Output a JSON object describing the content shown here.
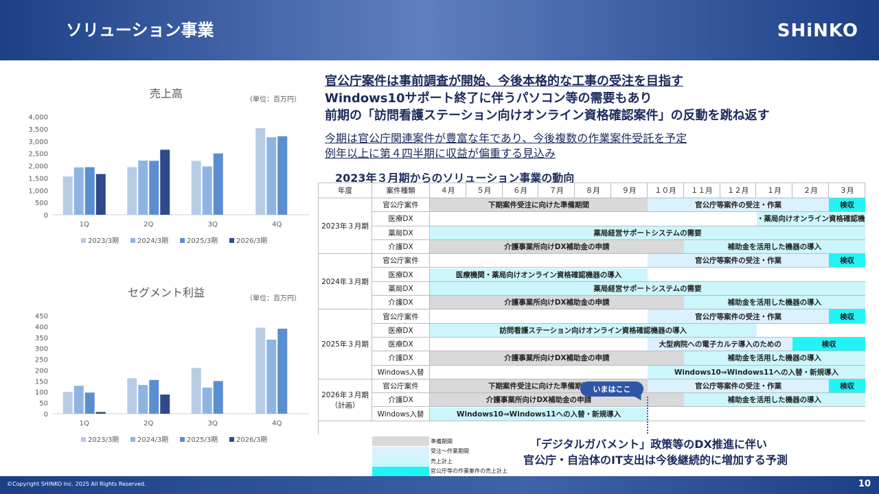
{
  "header": {
    "title": "ソリューション事業",
    "logo": "SHiNKO"
  },
  "footer": {
    "copyright": "©Copyright SHINKO Inc. 2025 All Rights Reserved.",
    "page": "10"
  },
  "headlines": [
    "官公庁案件は事前調査が開始、今後本格的な工事の受注を目指す",
    "Windows10サポート終了に伴うパソコン等の需要もあり",
    "前期の「訪問看護ステーション向けオンライン資格確認案件」の反動を跳ね返す"
  ],
  "subheadlines": [
    "今期は官公庁関連案件が豊富な年であり、今後複数の作業案件受託を予定",
    "例年以上に第４四半期に収益が偏重する見込み"
  ],
  "series_colors": [
    "#b8cce4",
    "#8eb4e3",
    "#5b8ed0",
    "#2e4a8a"
  ],
  "chart_data": [
    {
      "type": "bar",
      "title": "売上高",
      "unit": "（単位：百万円）",
      "categories": [
        "1Q",
        "2Q",
        "3Q",
        "4Q"
      ],
      "ylim": [
        0,
        4000
      ],
      "yticks": [
        "0",
        "500",
        "1,000",
        "1,500",
        "2,000",
        "2,500",
        "3,000",
        "3,500",
        "4,000"
      ],
      "series": [
        {
          "name": "2023/3期",
          "values": [
            1560,
            1940,
            2200,
            3530
          ]
        },
        {
          "name": "2024/3期",
          "values": [
            1930,
            2210,
            1970,
            3160
          ]
        },
        {
          "name": "2025/3期",
          "values": [
            1940,
            2200,
            2500,
            3200
          ]
        },
        {
          "name": "2026/3期",
          "values": [
            1660,
            2650,
            null,
            null
          ]
        }
      ],
      "legend": "bottom"
    },
    {
      "type": "bar",
      "title": "セグメント利益",
      "unit": "（単位：百万円）",
      "categories": [
        "1Q",
        "2Q",
        "3Q",
        "4Q"
      ],
      "ylim": [
        0,
        450
      ],
      "yticks": [
        "0",
        "50",
        "100",
        "150",
        "200",
        "250",
        "300",
        "350",
        "400",
        "450"
      ],
      "series": [
        {
          "name": "2023/3期",
          "values": [
            100,
            163,
            210,
            395
          ]
        },
        {
          "name": "2024/3期",
          "values": [
            128,
            132,
            120,
            340
          ]
        },
        {
          "name": "2025/3期",
          "values": [
            97,
            155,
            150,
            390
          ]
        },
        {
          "name": "2026/3期",
          "values": [
            8,
            88,
            null,
            null
          ]
        }
      ],
      "legend": "bottom"
    }
  ],
  "timeline": {
    "title": "2023年３月期からのソリューション事業の動向",
    "head_year": "年度",
    "head_type": "案件種類",
    "months": [
      "４月",
      "５月",
      "６月",
      "７月",
      "８月",
      "９月",
      "１０月",
      "１１月",
      "１２月",
      "１月",
      "２月",
      "３月"
    ],
    "groups": [
      {
        "year": "2023年３月期",
        "year_note": "",
        "rows": [
          {
            "type": "官公庁案件",
            "bars": [
              {
                "from": 0,
                "to": 6,
                "style": "gray",
                "label": "下期案件受注に向けた準備期間"
              },
              {
                "from": 6,
                "to": 11,
                "style": "light",
                "label": "官公庁等案件の受注・作業"
              },
              {
                "from": 11,
                "to": 12,
                "style": "cyan",
                "label": "検収"
              }
            ]
          },
          {
            "type": "医療DX",
            "bars": [
              {
                "from": 9,
                "to": 12,
                "style": "pale",
                "label": "医療機関・薬局向けオンライン資格確認機器の導入"
              }
            ]
          },
          {
            "type": "薬局DX",
            "bars": [
              {
                "from": 0,
                "to": 12,
                "style": "pale",
                "label": "薬局経営サポートシステムの需要"
              }
            ]
          },
          {
            "type": "介護DX",
            "bars": [
              {
                "from": 0,
                "to": 7,
                "style": "gray",
                "label": "介護事業所向けDX補助金の申請"
              },
              {
                "from": 7,
                "to": 12,
                "style": "pale",
                "label": "補助金を活用した機器の導入"
              }
            ]
          }
        ]
      },
      {
        "year": "2024年３月期",
        "year_note": "",
        "rows": [
          {
            "type": "官公庁案件",
            "bars": [
              {
                "from": 6,
                "to": 11,
                "style": "light",
                "label": "官公庁等案件の受注・作業"
              },
              {
                "from": 11,
                "to": 12,
                "style": "cyan",
                "label": "検収"
              }
            ]
          },
          {
            "type": "医療DX",
            "bars": [
              {
                "from": 0,
                "to": 6,
                "style": "pale",
                "label": "医療機関・薬局向けオンライン資格確認機器の導入"
              }
            ]
          },
          {
            "type": "薬局DX",
            "bars": [
              {
                "from": 0,
                "to": 12,
                "style": "pale",
                "label": "薬局経営サポートシステムの需要"
              }
            ]
          },
          {
            "type": "介護DX",
            "bars": [
              {
                "from": 0,
                "to": 7,
                "style": "gray",
                "label": "介護事業所向けDX補助金の申請"
              },
              {
                "from": 7,
                "to": 12,
                "style": "pale",
                "label": "補助金を活用した機器の導入"
              }
            ]
          }
        ]
      },
      {
        "year": "2025年３月期",
        "year_note": "",
        "rows": [
          {
            "type": "官公庁案件",
            "bars": [
              {
                "from": 6,
                "to": 11,
                "style": "light",
                "label": "官公庁等案件の受注・作業"
              },
              {
                "from": 11,
                "to": 12,
                "style": "cyan",
                "label": "検収"
              }
            ]
          },
          {
            "type": "医療DX",
            "bars": [
              {
                "from": 0,
                "to": 9,
                "style": "pale",
                "label": "訪問看護ステーション向けオンライン資格確認機器の導入"
              }
            ]
          },
          {
            "type": "医療DX",
            "bars": [
              {
                "from": 6,
                "to": 10,
                "style": "light",
                "label": "大型病院への電子カルテ導入のための"
              },
              {
                "from": 10,
                "to": 12,
                "style": "cyan",
                "label": "検収"
              }
            ]
          },
          {
            "type": "介護DX",
            "bars": [
              {
                "from": 0,
                "to": 7,
                "style": "gray",
                "label": "介護事業所向けDX補助金の申請"
              },
              {
                "from": 7,
                "to": 12,
                "style": "pale",
                "label": "補助金を活用した機器の導入"
              }
            ]
          },
          {
            "type": "Windows入替",
            "bars": [
              {
                "from": 6,
                "to": 12,
                "style": "pale",
                "label": "Windows10⇒Windows11への入替・新規導入"
              }
            ]
          }
        ]
      },
      {
        "year": "2026年３月期",
        "year_note": "（計画）",
        "rows": [
          {
            "type": "官公庁案件",
            "bars": [
              {
                "from": 0,
                "to": 6,
                "style": "gray",
                "label": "下期案件受注に向けた準備期間"
              },
              {
                "from": 6,
                "to": 11,
                "style": "light",
                "label": "官公庁等案件の受注・作業"
              },
              {
                "from": 11,
                "to": 12,
                "style": "cyan",
                "label": "検収"
              }
            ]
          },
          {
            "type": "介護DX",
            "bars": [
              {
                "from": 0,
                "to": 6,
                "style": "gray",
                "label": "介護事業所向けDX補助金の申請"
              },
              {
                "from": 6,
                "to": 7,
                "style": "gray",
                "label": ""
              },
              {
                "from": 7,
                "to": 12,
                "style": "pale",
                "label": "補助金を活用した機器の導入"
              }
            ]
          },
          {
            "type": "Windows入替",
            "bars": [
              {
                "from": 0,
                "to": 6,
                "style": "pale",
                "label": "Windows10⇒Windows11への入替・新規導入"
              }
            ]
          }
        ]
      }
    ],
    "callout": "いまはここ"
  },
  "legend": [
    {
      "style": "gray",
      "label": "準備期間"
    },
    {
      "style": "light",
      "label": "受注～作業期間"
    },
    {
      "style": "pale",
      "label": "売上計上"
    },
    {
      "style": "cyan",
      "label": "官公庁等の作業案件の売上計上"
    }
  ],
  "bottom_text": [
    "「デジタルガバメント」政策等のDX推進に伴い",
    "官公庁・自治体のIT支出は今後継続的に増加する予測"
  ]
}
